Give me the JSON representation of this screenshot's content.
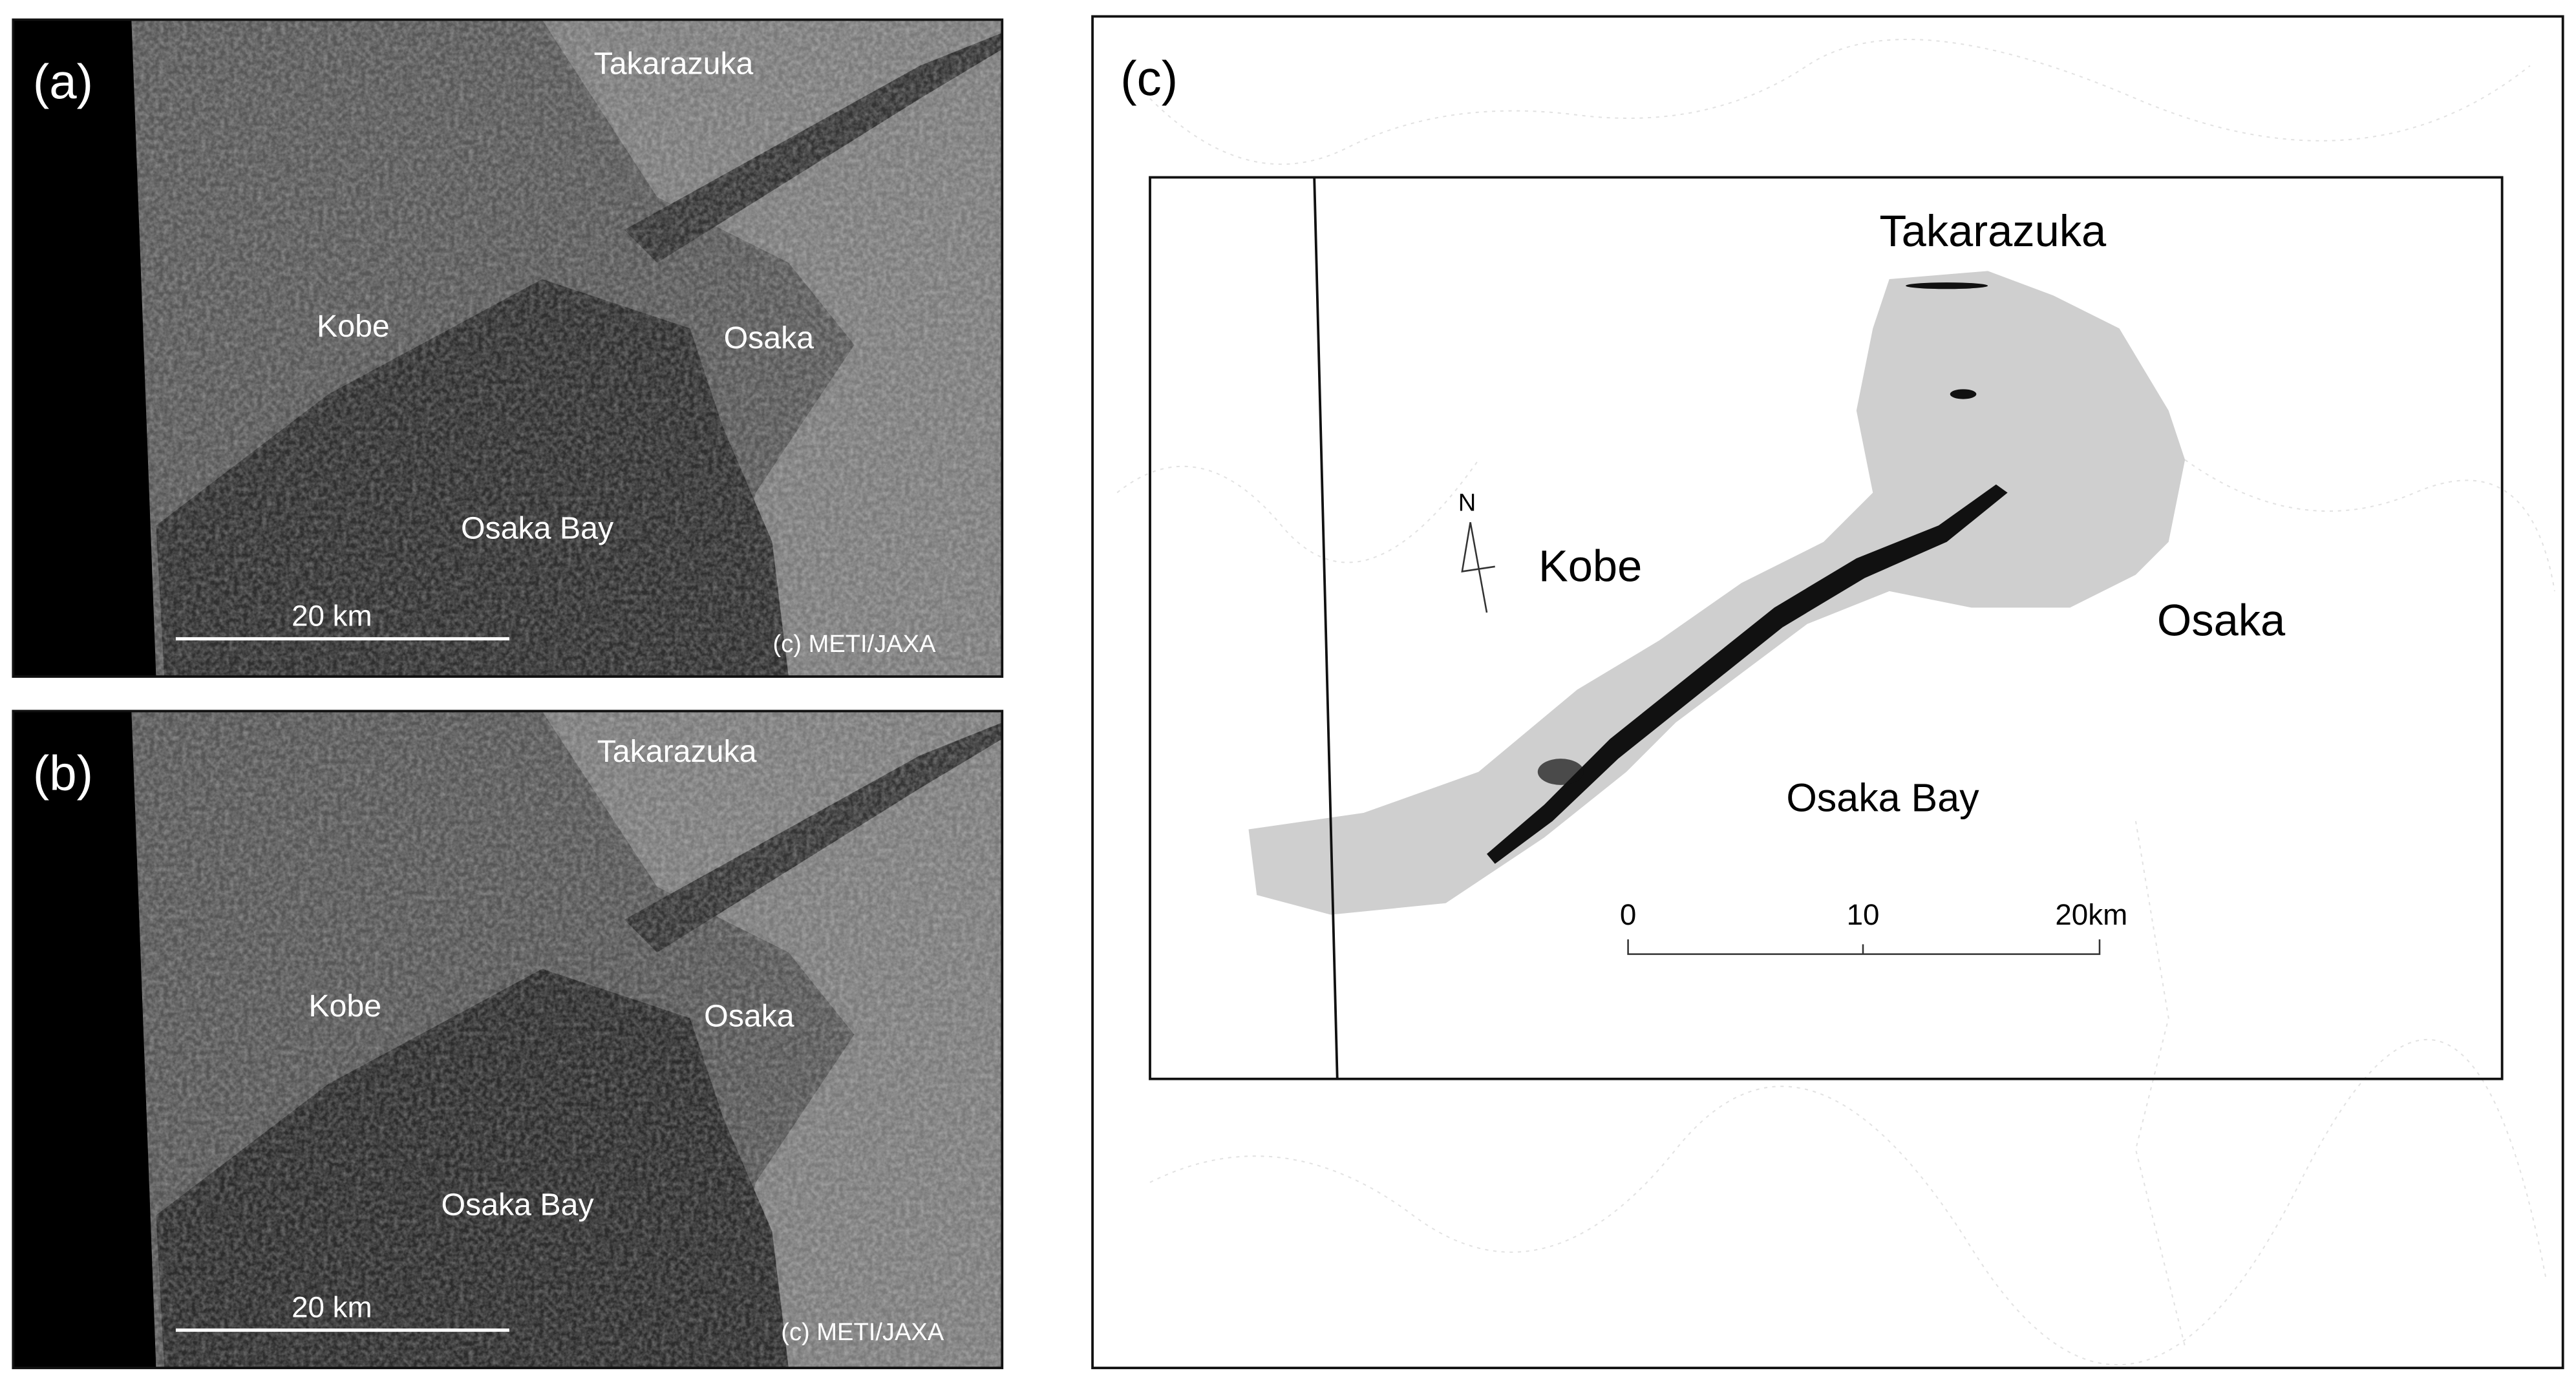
{
  "panel_a": {
    "label": "(a)",
    "takarazuka": "Takarazuka",
    "kobe": "Kobe",
    "osaka": "Osaka",
    "osaka_bay": "Osaka Bay",
    "scale": "20 km",
    "credit": "(c) METI/JAXA"
  },
  "panel_b": {
    "label": "(b)",
    "takarazuka": "Takarazuka",
    "kobe": "Kobe",
    "osaka": "Osaka",
    "osaka_bay": "Osaka Bay",
    "scale": "20 km",
    "credit": "(c) METI/JAXA"
  },
  "panel_c": {
    "label": "(c)",
    "takarazuka": "Takarazuka",
    "north": "N",
    "kobe": "Kobe",
    "osaka": "Osaka",
    "osaka_bay": "Osaka Bay",
    "scale_labels": [
      "0",
      "10",
      "20km"
    ]
  }
}
